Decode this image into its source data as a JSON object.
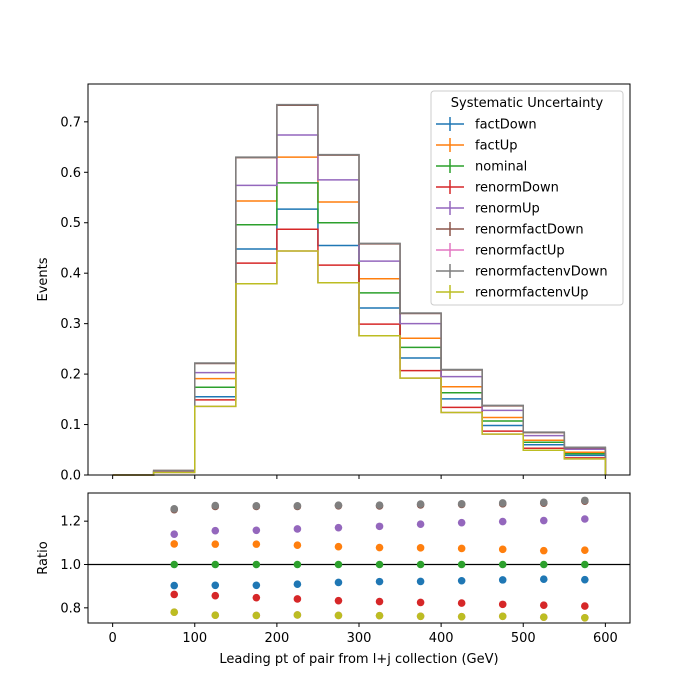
{
  "chart_data": [
    {
      "type": "step",
      "panel": "main",
      "xlim": [
        -30,
        630
      ],
      "ylim": [
        0,
        0.775
      ],
      "yticks": [
        0.0,
        0.1,
        0.2,
        0.3,
        0.4,
        0.5,
        0.6,
        0.7
      ],
      "ylabel": "Events",
      "bin_edges": [
        0,
        50,
        100,
        150,
        200,
        250,
        300,
        350,
        400,
        450,
        500,
        550,
        600
      ],
      "legend": {
        "title": "Systematic Uncertainty",
        "placement": "top-right"
      },
      "series": [
        {
          "name": "factDown",
          "color": "#1f77b4",
          "values": [
            0.0,
            0.006,
            0.155,
            0.448,
            0.527,
            0.455,
            0.331,
            0.232,
            0.151,
            0.098,
            0.06,
            0.039
          ]
        },
        {
          "name": "factUp",
          "color": "#ff7f0e",
          "values": [
            0.0,
            0.008,
            0.191,
            0.543,
            0.63,
            0.541,
            0.389,
            0.271,
            0.175,
            0.114,
            0.069,
            0.045
          ]
        },
        {
          "name": "nominal",
          "color": "#2ca02c",
          "values": [
            0.0,
            0.007,
            0.174,
            0.496,
            0.579,
            0.5,
            0.361,
            0.253,
            0.163,
            0.107,
            0.065,
            0.042
          ]
        },
        {
          "name": "renormDown",
          "color": "#d62728",
          "values": [
            0.0,
            0.006,
            0.149,
            0.42,
            0.487,
            0.416,
            0.299,
            0.207,
            0.134,
            0.087,
            0.053,
            0.034
          ]
        },
        {
          "name": "renormUp",
          "color": "#9467bd",
          "values": [
            0.0,
            0.008,
            0.203,
            0.574,
            0.674,
            0.585,
            0.424,
            0.3,
            0.195,
            0.128,
            0.078,
            0.051
          ]
        },
        {
          "name": "renormfactDown",
          "color": "#8c564b",
          "values": [
            0.0,
            0.009,
            0.221,
            0.629,
            0.733,
            0.634,
            0.458,
            0.32,
            0.208,
            0.137,
            0.084,
            0.054
          ]
        },
        {
          "name": "renormfactUp",
          "color": "#e377c2",
          "values": [
            0.0,
            0.005,
            0.136,
            0.379,
            0.444,
            0.381,
            0.276,
            0.192,
            0.124,
            0.081,
            0.049,
            0.032
          ]
        },
        {
          "name": "renormfactenvDown",
          "color": "#7f7f7f",
          "values": [
            0.0,
            0.009,
            0.222,
            0.63,
            0.734,
            0.635,
            0.459,
            0.321,
            0.209,
            0.138,
            0.085,
            0.055
          ]
        },
        {
          "name": "renormfactenvUp",
          "color": "#bcbd22",
          "values": [
            0.0,
            0.005,
            0.136,
            0.379,
            0.444,
            0.381,
            0.276,
            0.192,
            0.124,
            0.081,
            0.049,
            0.032
          ]
        }
      ]
    },
    {
      "type": "scatter",
      "panel": "ratio",
      "xlim": [
        -30,
        630
      ],
      "ylim": [
        0.73,
        1.33
      ],
      "yticks": [
        0.8,
        1.0,
        1.2
      ],
      "xticks": [
        0,
        100,
        200,
        300,
        400,
        500,
        600
      ],
      "xlabel": "Leading pt of pair from l+j collection (GeV)",
      "ylabel": "Ratio",
      "reference_line": 1.0,
      "x": [
        75,
        125,
        175,
        225,
        275,
        325,
        375,
        425,
        475,
        525,
        575
      ],
      "series": [
        {
          "name": "factDown",
          "color": "#1f77b4",
          "values": [
            0.903,
            0.904,
            0.904,
            0.909,
            0.917,
            0.921,
            0.922,
            0.925,
            0.929,
            0.932,
            0.93
          ]
        },
        {
          "name": "factUp",
          "color": "#ff7f0e",
          "values": [
            1.095,
            1.094,
            1.094,
            1.089,
            1.082,
            1.078,
            1.077,
            1.074,
            1.07,
            1.064,
            1.066
          ]
        },
        {
          "name": "nominal",
          "color": "#2ca02c",
          "values": [
            1.0,
            1.0,
            1.0,
            1.0,
            1.0,
            1.0,
            1.0,
            1.0,
            1.0,
            1.0,
            1.0
          ]
        },
        {
          "name": "renormDown",
          "color": "#d62728",
          "values": [
            0.862,
            0.856,
            0.847,
            0.841,
            0.833,
            0.829,
            0.825,
            0.822,
            0.816,
            0.812,
            0.808
          ]
        },
        {
          "name": "renormUp",
          "color": "#9467bd",
          "values": [
            1.14,
            1.156,
            1.158,
            1.164,
            1.17,
            1.176,
            1.186,
            1.193,
            1.198,
            1.203,
            1.21
          ]
        },
        {
          "name": "renormfactDown",
          "color": "#8c564b",
          "values": [
            1.253,
            1.268,
            1.268,
            1.268,
            1.271,
            1.27,
            1.275,
            1.277,
            1.28,
            1.283,
            1.292
          ]
        },
        {
          "name": "renormfactUp",
          "color": "#e377c2",
          "values": [
            0.78,
            0.766,
            0.765,
            0.767,
            0.765,
            0.764,
            0.761,
            0.759,
            0.761,
            0.757,
            0.754
          ]
        },
        {
          "name": "renormfactenvDown",
          "color": "#7f7f7f",
          "values": [
            1.257,
            1.272,
            1.271,
            1.271,
            1.274,
            1.274,
            1.279,
            1.28,
            1.284,
            1.287,
            1.296
          ]
        },
        {
          "name": "renormfactenvUp",
          "color": "#bcbd22",
          "values": [
            0.78,
            0.766,
            0.765,
            0.767,
            0.765,
            0.764,
            0.761,
            0.759,
            0.761,
            0.757,
            0.754
          ]
        }
      ]
    }
  ]
}
